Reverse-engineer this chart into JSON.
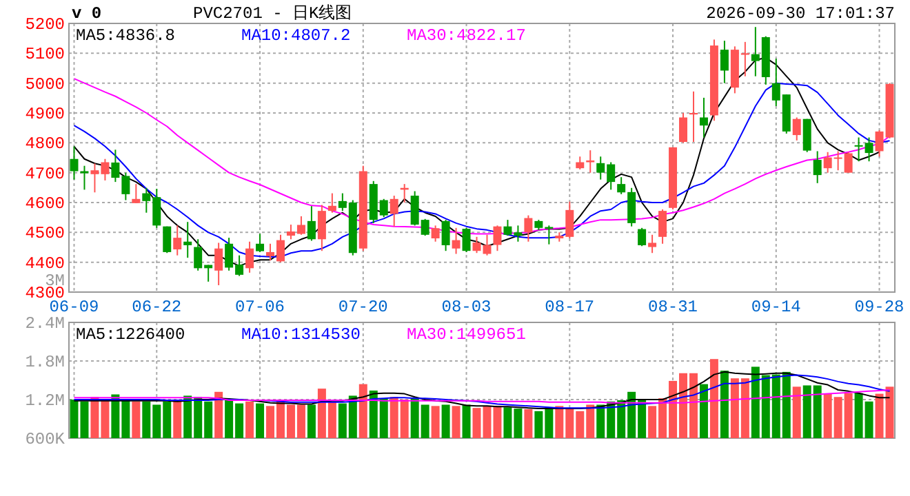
{
  "chart_data": [
    {
      "type": "candlestick",
      "title": "PVC2701 - 日K线图",
      "categories": [
        "06-09",
        null,
        null,
        null,
        null,
        null,
        null,
        null,
        "06-22",
        null,
        null,
        null,
        null,
        null,
        null,
        null,
        null,
        null,
        "07-06",
        null,
        null,
        null,
        null,
        null,
        null,
        null,
        null,
        null,
        "07-20",
        null,
        null,
        null,
        null,
        null,
        null,
        null,
        null,
        null,
        "08-03",
        null,
        null,
        null,
        null,
        null,
        null,
        null,
        null,
        null,
        "08-17",
        null,
        null,
        null,
        null,
        null,
        null,
        null,
        null,
        null,
        "08-31",
        null,
        null,
        null,
        null,
        null,
        null,
        null,
        null,
        null,
        "09-14",
        null,
        null,
        null,
        null,
        null,
        null,
        null,
        null,
        null,
        "09-28",
        null
      ],
      "ohlc": [
        [
          4746,
          4788,
          4677,
          4705
        ],
        [
          4705,
          4723,
          4643,
          4698
        ],
        [
          4695,
          4731,
          4634,
          4708
        ],
        [
          4695,
          4746,
          4674,
          4735
        ],
        [
          4734,
          4777,
          4669,
          4683
        ],
        [
          4689,
          4700,
          4608,
          4628
        ],
        [
          4598,
          4662,
          4598,
          4612
        ],
        [
          4631,
          4649,
          4566,
          4605
        ],
        [
          4618,
          4646,
          4515,
          4523
        ],
        [
          4520,
          4520,
          4431,
          4434
        ],
        [
          4443,
          4523,
          4423,
          4482
        ],
        [
          4469,
          4535,
          4415,
          4457
        ],
        [
          4451,
          4477,
          4372,
          4380
        ],
        [
          4391,
          4391,
          4335,
          4380
        ],
        [
          4372,
          4465,
          4323,
          4446
        ],
        [
          4462,
          4482,
          4372,
          4382
        ],
        [
          4392,
          4423,
          4354,
          4358
        ],
        [
          4380,
          4469,
          4365,
          4446
        ],
        [
          4462,
          4495,
          4434,
          4437
        ],
        [
          4420,
          4462,
          4406,
          4434
        ],
        [
          4403,
          4492,
          4400,
          4474
        ],
        [
          4489,
          4526,
          4477,
          4503
        ],
        [
          4495,
          4554,
          4492,
          4525
        ],
        [
          4538,
          4588,
          4472,
          4477
        ],
        [
          4477,
          4592,
          4438,
          4572
        ],
        [
          4572,
          4631,
          4566,
          4589
        ],
        [
          4605,
          4631,
          4572,
          4582
        ],
        [
          4600,
          4608,
          4423,
          4431
        ],
        [
          4446,
          4723,
          4438,
          4705
        ],
        [
          4662,
          4672,
          4531,
          4542
        ],
        [
          4608,
          4612,
          4551,
          4557
        ],
        [
          4562,
          4623,
          4520,
          4612
        ],
        [
          4643,
          4662,
          4600,
          4649
        ],
        [
          4623,
          4638,
          4523,
          4526
        ],
        [
          4542,
          4545,
          4489,
          4492
        ],
        [
          4480,
          4523,
          4469,
          4514
        ],
        [
          4538,
          4542,
          4438,
          4457
        ],
        [
          4446,
          4515,
          4428,
          4474
        ],
        [
          4512,
          4515,
          4434,
          4438
        ],
        [
          4438,
          4485,
          4431,
          4466
        ],
        [
          4428,
          4492,
          4423,
          4458
        ],
        [
          4458,
          4523,
          4438,
          4520
        ],
        [
          4520,
          4542,
          4489,
          4492
        ],
        [
          4500,
          4523,
          4469,
          4489
        ],
        [
          4500,
          4557,
          4469,
          4548
        ],
        [
          4538,
          4542,
          4508,
          4515
        ],
        [
          4518,
          4523,
          4460,
          4512
        ],
        [
          4480,
          4500,
          4469,
          4489
        ],
        [
          4485,
          4603,
          4480,
          4575
        ],
        [
          4715,
          4754,
          4711,
          4735
        ],
        [
          4735,
          4775,
          4700,
          4741
        ],
        [
          4732,
          4754,
          4677,
          4700
        ],
        [
          4728,
          4735,
          4643,
          4669
        ],
        [
          4662,
          4685,
          4628,
          4634
        ],
        [
          4635,
          4649,
          4520,
          4531
        ],
        [
          4511,
          4515,
          4454,
          4457
        ],
        [
          4451,
          4492,
          4431,
          4465
        ],
        [
          4485,
          4577,
          4462,
          4572
        ],
        [
          4582,
          4785,
          4577,
          4785
        ],
        [
          4803,
          4900,
          4800,
          4885
        ],
        [
          4895,
          4972,
          4803,
          4900
        ],
        [
          4885,
          4951,
          4818,
          4858
        ],
        [
          4892,
          5146,
          4874,
          5126
        ],
        [
          5112,
          5142,
          5000,
          5042
        ],
        [
          4985,
          5123,
          4966,
          5112
        ],
        [
          5095,
          5138,
          5023,
          5100
        ],
        [
          5097,
          5188,
          5023,
          5074
        ],
        [
          5154,
          5157,
          4995,
          5020
        ],
        [
          5000,
          5082,
          4923,
          4942
        ],
        [
          4962,
          4962,
          4831,
          4838
        ],
        [
          4826,
          4885,
          4808,
          4880
        ],
        [
          4880,
          4880,
          4769,
          4774
        ],
        [
          4743,
          4772,
          4665,
          4692
        ],
        [
          4715,
          4769,
          4700,
          4751
        ],
        [
          4749,
          4772,
          4708,
          4751
        ],
        [
          4700,
          4769,
          4700,
          4765
        ],
        [
          4792,
          4818,
          4738,
          4789
        ],
        [
          4800,
          4818,
          4738,
          4766
        ],
        [
          4772,
          4842,
          4754,
          4838
        ],
        [
          4818,
          5000,
          4815,
          4997
        ]
      ],
      "colors": [
        "#009900",
        "#009900",
        "#ff5555",
        "#ff5555",
        "#009900",
        "#009900",
        "#ff5555",
        "#009900",
        "#009900",
        "#009900",
        "#ff5555",
        "#009900",
        "#009900",
        "#009900",
        "#ff5555",
        "#009900",
        "#009900",
        "#ff5555",
        "#009900",
        "#ff5555",
        "#ff5555",
        "#ff5555",
        "#ff5555",
        "#009900",
        "#ff5555",
        "#ff5555",
        "#009900",
        "#009900",
        "#ff5555",
        "#009900",
        "#009900",
        "#ff5555",
        "#ff5555",
        "#009900",
        "#009900",
        "#ff5555",
        "#009900",
        "#ff5555",
        "#009900",
        "#ff5555",
        "#ff5555",
        "#ff5555",
        "#009900",
        "#009900",
        "#ff5555",
        "#009900",
        "#009900",
        "#ff5555",
        "#ff5555",
        "#ff5555",
        "#ff5555",
        "#009900",
        "#009900",
        "#009900",
        "#009900",
        "#009900",
        "#ff5555",
        "#ff5555",
        "#ff5555",
        "#ff5555",
        "#ff5555",
        "#009900",
        "#ff5555",
        "#009900",
        "#ff5555",
        "#ff5555",
        "#009900",
        "#009900",
        "#009900",
        "#009900",
        "#ff5555",
        "#009900",
        "#009900",
        "#ff5555",
        "#ff5555",
        "#ff5555",
        "#009900",
        "#009900",
        "#ff5555",
        "#ff5555"
      ],
      "series": [
        {
          "name": "MA5:4836.8",
          "type": "line",
          "color": "#000000",
          "values": [
            4788,
            4746,
            4731,
            4723,
            4708,
            4685,
            4669,
            4646,
            4600,
            4554,
            4523,
            4500,
            4462,
            4423,
            4423,
            4403,
            4388,
            4400,
            4408,
            4408,
            4431,
            4462,
            4477,
            4489,
            4523,
            4546,
            4566,
            4542,
            4572,
            4577,
            4566,
            4569,
            4612,
            4585,
            4566,
            4554,
            4526,
            4500,
            4477,
            4469,
            4454,
            4465,
            4477,
            4489,
            4495,
            4508,
            4511,
            4511,
            4515,
            4554,
            4600,
            4646,
            4677,
            4695,
            4685,
            4600,
            4554,
            4535,
            4546,
            4600,
            4692,
            4815,
            4900,
            4954,
            5008,
            5038,
            5077,
            5085,
            5062,
            5023,
            4985,
            4915,
            4846,
            4800,
            4777,
            4762,
            4742,
            4754,
            4769,
            null
          ]
        },
        {
          "name": "MA10:4807.2",
          "type": "line",
          "color": "#0000ff",
          "values": [
            4858,
            4838,
            4815,
            4788,
            4757,
            4720,
            4680,
            4646,
            4618,
            4600,
            4577,
            4551,
            4523,
            4500,
            4485,
            4462,
            4434,
            4423,
            4420,
            4418,
            4418,
            4431,
            4438,
            4438,
            4446,
            4462,
            4485,
            4500,
            4523,
            4535,
            4546,
            4562,
            4569,
            4572,
            4569,
            4562,
            4546,
            4531,
            4520,
            4512,
            4508,
            4500,
            4492,
            4485,
            4482,
            4482,
            4482,
            4485,
            4500,
            4523,
            4554,
            4572,
            4577,
            4600,
            4608,
            4603,
            4600,
            4600,
            4615,
            4634,
            4654,
            4665,
            4692,
            4723,
            4785,
            4854,
            4923,
            4977,
            5000,
            4997,
            4995,
            4992,
            4969,
            4931,
            4892,
            4862,
            4831,
            4808,
            4800,
            4807
          ]
        },
        {
          "name": "MA30:4822.17",
          "type": "line",
          "color": "#ff00ff",
          "values": [
            5015,
            5000,
            4985,
            4970,
            4956,
            4938,
            4920,
            4900,
            4877,
            4855,
            4825,
            4800,
            4775,
            4750,
            4725,
            4700,
            4685,
            4672,
            4660,
            4645,
            4630,
            4615,
            4600,
            4590,
            4588,
            4572,
            4562,
            4546,
            4535,
            4526,
            4523,
            4520,
            4519,
            4518,
            4517,
            4512,
            4505,
            4500,
            4497,
            4495,
            4495,
            4496,
            4497,
            4498,
            4500,
            4508,
            4512,
            4514,
            4517,
            4526,
            4535,
            4542,
            4542,
            4543,
            4544,
            4546,
            4550,
            4560,
            4566,
            4574,
            4585,
            4597,
            4612,
            4631,
            4646,
            4662,
            4680,
            4695,
            4708,
            4720,
            4731,
            4742,
            4746,
            4754,
            4762,
            4769,
            4777,
            4788,
            4797,
            4822
          ]
        }
      ],
      "ylim": [
        4300,
        5200
      ],
      "yticks": [
        4300,
        4400,
        4500,
        4600,
        4700,
        4800,
        4900,
        5000,
        5100,
        5200
      ],
      "grid": true,
      "legend": "top",
      "annotations": [
        "v 0",
        "2026-09-30 17:01:37"
      ]
    },
    {
      "type": "bar",
      "categories": [
        null,
        null,
        null,
        null,
        null,
        null,
        null,
        null,
        null,
        null,
        null,
        null,
        null,
        null,
        null,
        null,
        null,
        null,
        null,
        null,
        null,
        null,
        null,
        null,
        null,
        null,
        null,
        null,
        null,
        null,
        null,
        null,
        null,
        null,
        null,
        null,
        null,
        null,
        null,
        null,
        null,
        null,
        null,
        null,
        null,
        null,
        null,
        null,
        null,
        null,
        null,
        null,
        null,
        null,
        null,
        null,
        null,
        null,
        null,
        null,
        null,
        null,
        null,
        null,
        null,
        null,
        null,
        null,
        null,
        null,
        null,
        null,
        null,
        null,
        null,
        null,
        null,
        null,
        null,
        null
      ],
      "series": [
        {
          "type": "bar",
          "colors": [
            "#009900",
            "#009900",
            "#ff5555",
            "#ff5555",
            "#009900",
            "#009900",
            "#ff5555",
            "#009900",
            "#009900",
            "#009900",
            "#ff5555",
            "#009900",
            "#009900",
            "#009900",
            "#ff5555",
            "#009900",
            "#009900",
            "#ff5555",
            "#009900",
            "#ff5555",
            "#ff5555",
            "#ff5555",
            "#ff5555",
            "#009900",
            "#ff5555",
            "#ff5555",
            "#009900",
            "#009900",
            "#ff5555",
            "#009900",
            "#009900",
            "#ff5555",
            "#ff5555",
            "#009900",
            "#009900",
            "#ff5555",
            "#009900",
            "#ff5555",
            "#009900",
            "#ff5555",
            "#ff5555",
            "#ff5555",
            "#009900",
            "#009900",
            "#ff5555",
            "#009900",
            "#009900",
            "#ff5555",
            "#ff5555",
            "#ff5555",
            "#ff5555",
            "#009900",
            "#009900",
            "#009900",
            "#009900",
            "#009900",
            "#ff5555",
            "#ff5555",
            "#ff5555",
            "#ff5555",
            "#ff5555",
            "#009900",
            "#ff5555",
            "#009900",
            "#ff5555",
            "#ff5555",
            "#009900",
            "#009900",
            "#009900",
            "#009900",
            "#ff5555",
            "#009900",
            "#009900",
            "#ff5555",
            "#ff5555",
            "#ff5555",
            "#009900",
            "#009900",
            "#ff5555",
            "#ff5555"
          ],
          "values": [
            1200000,
            1170000,
            1240000,
            1190000,
            1280000,
            1190000,
            1170000,
            1170000,
            1120000,
            1170000,
            1170000,
            1260000,
            1240000,
            1170000,
            1320000,
            1200000,
            1140000,
            1170000,
            1140000,
            1100000,
            1170000,
            1120000,
            1120000,
            1120000,
            1370000,
            1170000,
            1140000,
            1260000,
            1440000,
            1340000,
            1220000,
            1240000,
            1200000,
            1220000,
            1120000,
            1100000,
            1120000,
            1100000,
            1120000,
            1070000,
            1100000,
            1100000,
            1080000,
            1060000,
            1050000,
            1020000,
            1060000,
            1100000,
            1060000,
            1020000,
            1120000,
            1120000,
            1170000,
            1190000,
            1320000,
            1200000,
            1100000,
            1220000,
            1490000,
            1610000,
            1610000,
            1440000,
            1830000,
            1650000,
            1530000,
            1530000,
            1710000,
            1580000,
            1590000,
            1630000,
            1400000,
            1420000,
            1420000,
            1290000,
            1240000,
            1300000,
            1300000,
            1170000,
            1290000,
            1400000
          ]
        },
        {
          "name": "MA5:1226400",
          "type": "line",
          "color": "#000000",
          "values": [
            1180000,
            1180000,
            1180000,
            1180000,
            1180000,
            1180000,
            1180000,
            1180000,
            1180000,
            1180000,
            1170000,
            1180000,
            1200000,
            1200000,
            1220000,
            1210000,
            1200000,
            1190000,
            1170000,
            1150000,
            1140000,
            1140000,
            1130000,
            1130000,
            1170000,
            1180000,
            1180000,
            1210000,
            1240000,
            1290000,
            1300000,
            1300000,
            1290000,
            1240000,
            1200000,
            1180000,
            1170000,
            1140000,
            1110000,
            1100000,
            1100000,
            1090000,
            1090000,
            1080000,
            1070000,
            1060000,
            1060000,
            1060000,
            1060000,
            1060000,
            1070000,
            1090000,
            1120000,
            1150000,
            1200000,
            1200000,
            1200000,
            1200000,
            1260000,
            1320000,
            1390000,
            1480000,
            1590000,
            1630000,
            1610000,
            1600000,
            1590000,
            1600000,
            1610000,
            1610000,
            1580000,
            1520000,
            1460000,
            1430000,
            1350000,
            1330000,
            1300000,
            1260000,
            1230000,
            1230000
          ]
        },
        {
          "name": "MA10:1314530",
          "type": "line",
          "color": "#0000ff",
          "values": [
            1200000,
            1200000,
            1200000,
            1200000,
            1200000,
            1200000,
            1200000,
            1200000,
            1200000,
            1190000,
            1190000,
            1190000,
            1190000,
            1190000,
            1200000,
            1200000,
            1200000,
            1190000,
            1190000,
            1180000,
            1170000,
            1160000,
            1160000,
            1160000,
            1160000,
            1160000,
            1160000,
            1170000,
            1180000,
            1210000,
            1220000,
            1230000,
            1230000,
            1220000,
            1220000,
            1210000,
            1200000,
            1190000,
            1180000,
            1170000,
            1150000,
            1130000,
            1120000,
            1110000,
            1100000,
            1090000,
            1080000,
            1070000,
            1070000,
            1070000,
            1070000,
            1070000,
            1080000,
            1090000,
            1120000,
            1130000,
            1140000,
            1150000,
            1200000,
            1240000,
            1270000,
            1330000,
            1390000,
            1450000,
            1450000,
            1460000,
            1500000,
            1530000,
            1550000,
            1570000,
            1580000,
            1570000,
            1550000,
            1520000,
            1480000,
            1450000,
            1430000,
            1400000,
            1360000,
            1330000
          ]
        },
        {
          "name": "MA30:1499651",
          "type": "line",
          "color": "#ff00ff",
          "values": [
            1230000,
            1230000,
            1230000,
            1230000,
            1230000,
            1230000,
            1230000,
            1230000,
            1230000,
            1230000,
            1230000,
            1230000,
            1230000,
            1230000,
            1220000,
            1190000,
            1190000,
            1190000,
            1190000,
            1190000,
            1190000,
            1190000,
            1190000,
            1190000,
            1190000,
            1190000,
            1190000,
            1190000,
            1190000,
            1190000,
            1180000,
            1180000,
            1180000,
            1180000,
            1180000,
            1180000,
            1180000,
            1180000,
            1180000,
            1180000,
            1170000,
            1170000,
            1170000,
            1170000,
            1170000,
            1170000,
            1160000,
            1160000,
            1160000,
            1160000,
            1160000,
            1160000,
            1150000,
            1150000,
            1150000,
            1150000,
            1150000,
            1150000,
            1150000,
            1150000,
            1160000,
            1170000,
            1180000,
            1190000,
            1200000,
            1210000,
            1220000,
            1230000,
            1240000,
            1250000,
            1260000,
            1270000,
            1280000,
            1290000,
            1300000,
            1310000,
            1320000,
            1330000,
            1340000,
            1350000
          ]
        }
      ],
      "ylim": [
        600000,
        2400000
      ],
      "yticks": [
        {
          "value": 600000,
          "label": "600K"
        },
        {
          "value": 1200000,
          "label": "1.2M"
        },
        {
          "value": 1800000,
          "label": "1.8M"
        },
        {
          "value": 2400000,
          "label": "2.4M"
        }
      ],
      "grid": true,
      "legend": "top",
      "tick_labels": "y",
      "annotations": [
        "3M"
      ]
    }
  ]
}
